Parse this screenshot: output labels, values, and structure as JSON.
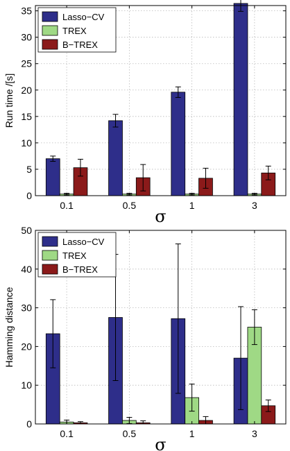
{
  "chart_data": [
    {
      "type": "bar",
      "title": "",
      "xlabel": "σ",
      "ylabel": "Run time  /[s]",
      "categories": [
        "0.1",
        "0.5",
        "1",
        "3"
      ],
      "ylim": [
        0,
        36
      ],
      "yticks": [
        0,
        5,
        10,
        15,
        20,
        25,
        30,
        35
      ],
      "grid": true,
      "legend_position": "top-left",
      "series": [
        {
          "name": "Lasso−CV",
          "color": "#2e2e8a",
          "values": [
            7.0,
            14.2,
            19.6,
            36.4
          ],
          "errors": [
            0.5,
            1.2,
            1.0,
            1.5
          ]
        },
        {
          "name": "TREX",
          "color": "#9fd985",
          "values": [
            0.3,
            0.3,
            0.3,
            0.3
          ],
          "errors": [
            0.15,
            0.15,
            0.15,
            0.15
          ]
        },
        {
          "name": "B−TREX",
          "color": "#8b1a1a",
          "values": [
            5.3,
            3.4,
            3.3,
            4.3
          ],
          "errors": [
            1.6,
            2.5,
            1.9,
            1.3
          ]
        }
      ]
    },
    {
      "type": "bar",
      "title": "",
      "xlabel": "σ",
      "ylabel": "Hamming distance",
      "categories": [
        "0.1",
        "0.5",
        "1",
        "3"
      ],
      "ylim": [
        0,
        50
      ],
      "yticks": [
        0,
        10,
        20,
        30,
        40,
        50
      ],
      "grid": true,
      "legend_position": "top-left",
      "series": [
        {
          "name": "Lasso−CV",
          "color": "#2e2e8a",
          "values": [
            23.3,
            27.5,
            27.2,
            17.0
          ],
          "errors": [
            8.8,
            16.3,
            19.3,
            13.3
          ]
        },
        {
          "name": "TREX",
          "color": "#9fd985",
          "values": [
            0.5,
            0.9,
            6.8,
            25.0
          ],
          "errors": [
            0.5,
            0.8,
            3.5,
            4.5
          ]
        },
        {
          "name": "B−TREX",
          "color": "#8b1a1a",
          "values": [
            0.3,
            0.3,
            0.9,
            4.7
          ],
          "errors": [
            0.3,
            0.5,
            1.0,
            1.5
          ]
        }
      ]
    }
  ]
}
